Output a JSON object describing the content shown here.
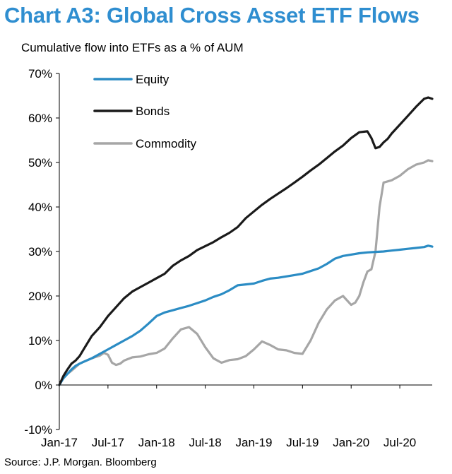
{
  "title": "Chart A3: Global Cross Asset ETF Flows",
  "subtitle": "Cumulative flow into ETFs as a % of AUM",
  "source": "Source: J.P. Morgan. Bloomberg",
  "chart_data": {
    "type": "line",
    "title": "Chart A3: Global Cross Asset ETF Flows",
    "ylabel": "Cumulative flow into ETFs as a % of AUM",
    "ylim": [
      -10,
      70
    ],
    "y_ticks": [
      -10,
      0,
      10,
      20,
      30,
      40,
      50,
      60,
      70
    ],
    "y_tick_labels": [
      "-10%",
      "0%",
      "10%",
      "20%",
      "30%",
      "40%",
      "50%",
      "60%",
      "70%"
    ],
    "x_range": [
      0,
      46
    ],
    "x_ticks": [
      0,
      6,
      12,
      18,
      24,
      30,
      36,
      42
    ],
    "x_tick_labels": [
      "Jan-17",
      "Jul-17",
      "Jan-18",
      "Jul-18",
      "Jan-19",
      "Jul-19",
      "Jan-20",
      "Jul-20"
    ],
    "x_unit": "months since Jan-17",
    "legend_position": "top-left",
    "series": [
      {
        "name": "Equity",
        "color": "#2b8cc4",
        "x": [
          0,
          0.5,
          1,
          1.5,
          2,
          2.5,
          3,
          4,
          5,
          6,
          7,
          8,
          9,
          10,
          11,
          12,
          13,
          14,
          15,
          16,
          17,
          18,
          19,
          20,
          21,
          22,
          23,
          24,
          25,
          26,
          27,
          28,
          29,
          30,
          31,
          32,
          33,
          34,
          35,
          36,
          37,
          38,
          39,
          40,
          41,
          42,
          43,
          44,
          45,
          45.5,
          46
        ],
        "values": [
          0,
          1.5,
          2.5,
          3.5,
          4.3,
          4.8,
          5.2,
          6.0,
          7.0,
          8.0,
          9.0,
          10.0,
          11.0,
          12.2,
          13.8,
          15.5,
          16.3,
          16.8,
          17.3,
          17.8,
          18.4,
          19.0,
          19.8,
          20.4,
          21.3,
          22.4,
          22.6,
          22.8,
          23.4,
          23.9,
          24.1,
          24.4,
          24.7,
          25.0,
          25.6,
          26.2,
          27.2,
          28.4,
          29.0,
          29.3,
          29.6,
          29.8,
          29.9,
          30.0,
          30.2,
          30.4,
          30.6,
          30.8,
          31.0,
          31.3,
          31.1
        ]
      },
      {
        "name": "Bonds",
        "color": "#1a1a1a",
        "x": [
          0,
          0.5,
          1,
          1.5,
          2,
          2.5,
          3,
          3.5,
          4,
          5,
          6,
          7,
          8,
          9,
          10,
          11,
          12,
          13,
          14,
          15,
          16,
          17,
          18,
          19,
          20,
          21,
          22,
          23,
          24,
          25,
          26,
          27,
          28,
          29,
          30,
          31,
          32,
          33,
          34,
          35,
          36,
          37,
          38,
          38.5,
          39,
          39.5,
          40,
          40.5,
          41,
          42,
          43,
          44,
          45,
          45.5,
          46
        ],
        "values": [
          0,
          2.0,
          3.5,
          4.8,
          5.5,
          6.5,
          8.0,
          9.5,
          11.0,
          13.0,
          15.5,
          17.5,
          19.5,
          21.0,
          22.0,
          23.0,
          24.0,
          25.0,
          26.8,
          28.0,
          29.0,
          30.3,
          31.2,
          32.1,
          33.2,
          34.2,
          35.5,
          37.5,
          39.0,
          40.5,
          41.8,
          43.0,
          44.2,
          45.5,
          46.8,
          48.2,
          49.5,
          51.0,
          52.5,
          53.8,
          55.5,
          56.8,
          57.0,
          55.5,
          53.2,
          53.5,
          54.5,
          55.3,
          56.5,
          58.5,
          60.5,
          62.5,
          64.3,
          64.6,
          64.3
        ]
      },
      {
        "name": "Commodity",
        "color": "#a6a6a6",
        "x": [
          0,
          0.5,
          1,
          1.5,
          2,
          2.5,
          3,
          4,
          5,
          5.5,
          6,
          6.5,
          7,
          7.5,
          8,
          9,
          10,
          11,
          12,
          13,
          14,
          15,
          16,
          17,
          18,
          19,
          20,
          21,
          22,
          23,
          24,
          25,
          26,
          27,
          28,
          29,
          30,
          31,
          32,
          33,
          34,
          35,
          36,
          36.5,
          37,
          37.5,
          38,
          38.5,
          39,
          39.5,
          40,
          41,
          42,
          43,
          44,
          45,
          45.5,
          46
        ],
        "values": [
          0,
          1.5,
          2.5,
          3.2,
          4.0,
          4.8,
          5.2,
          6.0,
          6.6,
          7.2,
          6.8,
          5.0,
          4.5,
          4.8,
          5.5,
          6.2,
          6.4,
          6.9,
          7.2,
          8.2,
          10.5,
          12.5,
          13.0,
          11.5,
          8.5,
          6.0,
          5.0,
          5.6,
          5.8,
          6.5,
          8.0,
          9.8,
          9.0,
          8.0,
          7.8,
          7.2,
          7.0,
          10.0,
          14.0,
          17.0,
          19.0,
          20.0,
          18.0,
          18.5,
          20.0,
          23.0,
          25.5,
          26.0,
          30.0,
          40.0,
          45.5,
          46.0,
          47.0,
          48.5,
          49.5,
          50.0,
          50.5,
          50.3
        ]
      }
    ]
  }
}
